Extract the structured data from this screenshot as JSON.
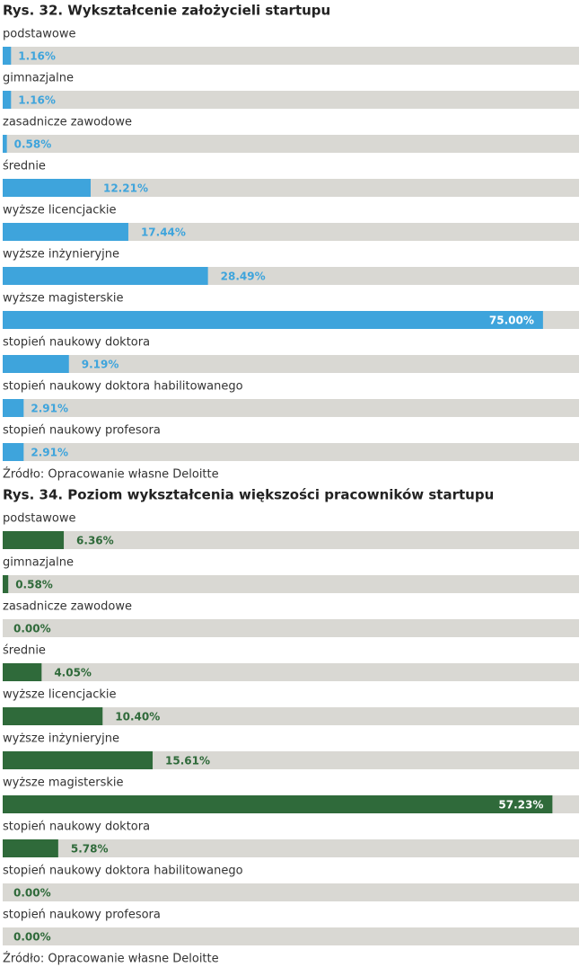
{
  "chart_data": [
    {
      "type": "bar",
      "title": "Rys. 32. Wykształcenie założycieli startupu",
      "categories": [
        "podstawowe",
        "gimnazjalne",
        "zasadnicze zawodowe",
        "średnie",
        "wyższe licencjackie",
        "wyższe inżynieryjne",
        "wyższe magisterskie",
        "stopień naukowy doktora",
        "stopień naukowy doktora habilitowanego",
        "stopień naukowy profesora"
      ],
      "values": [
        1.16,
        1.16,
        0.58,
        12.21,
        17.44,
        28.49,
        75.0,
        9.19,
        2.91,
        2.91
      ],
      "value_labels": [
        "1.16%",
        "1.16%",
        "0.58%",
        "12.21%",
        "17.44%",
        "28.49%",
        "75.00%",
        "9.19%",
        "2.91%",
        "2.91%"
      ],
      "color": "#3ea4dc",
      "xlim": [
        0,
        80
      ],
      "source": "Źródło: Opracowanie własne Deloitte"
    },
    {
      "type": "bar",
      "title": "Rys. 34. Poziom wykształcenia większości pracowników startupu",
      "categories": [
        "podstawowe",
        "gimnazjalne",
        "zasadnicze zawodowe",
        "średnie",
        "wyższe licencjackie",
        "wyższe inżynieryjne",
        "wyższe magisterskie",
        "stopień naukowy doktora",
        "stopień naukowy doktora habilitowanego",
        "stopień naukowy profesora"
      ],
      "values": [
        6.36,
        0.58,
        0.0,
        4.05,
        10.4,
        15.61,
        57.23,
        5.78,
        0.0,
        0.0
      ],
      "value_labels": [
        "6.36%",
        "0.58%",
        "0.00%",
        "4.05%",
        "10.40%",
        "15.61%",
        "57.23%",
        "5.78%",
        "0.00%",
        "0.00%"
      ],
      "color": "#2f6a3a",
      "xlim": [
        0,
        60
      ],
      "source": "Źródło: Opracowanie własne Deloitte"
    }
  ]
}
